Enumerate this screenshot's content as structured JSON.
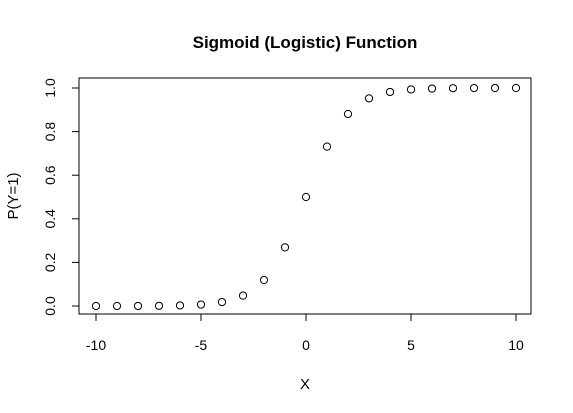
{
  "chart_data": {
    "type": "scatter",
    "title": "Sigmoid (Logistic) Function",
    "xlabel": "X",
    "ylabel": "P(Y=1)",
    "xlim": [
      -10,
      10
    ],
    "ylim": [
      0,
      1
    ],
    "x_ticks": [
      -10,
      -5,
      0,
      5,
      10
    ],
    "x_tick_labels": [
      "-10",
      "-5",
      "0",
      "5",
      "10"
    ],
    "y_ticks": [
      0,
      0.2,
      0.4,
      0.6,
      0.8,
      1
    ],
    "y_tick_labels": [
      "0.0",
      "0.2",
      "0.4",
      "0.6",
      "0.8",
      "1.0"
    ],
    "grid": false,
    "legend": "none",
    "marker": "open-circle",
    "colors": {
      "marker": "#000000",
      "axis": "#000000",
      "background": "#ffffff"
    },
    "x": [
      -10,
      -9,
      -8,
      -7,
      -6,
      -5,
      -4,
      -3,
      -2,
      -1,
      0,
      1,
      2,
      3,
      4,
      5,
      6,
      7,
      8,
      9,
      10
    ],
    "y": [
      4.54e-05,
      0.0001234,
      0.0003354,
      0.0009111,
      0.0024726,
      0.0066929,
      0.0179862,
      0.0474259,
      0.1192029,
      0.2689414,
      0.5,
      0.7310586,
      0.8807971,
      0.9525741,
      0.9820138,
      0.9933071,
      0.9975274,
      0.9990889,
      0.9996646,
      0.9998766,
      0.9999546
    ]
  }
}
